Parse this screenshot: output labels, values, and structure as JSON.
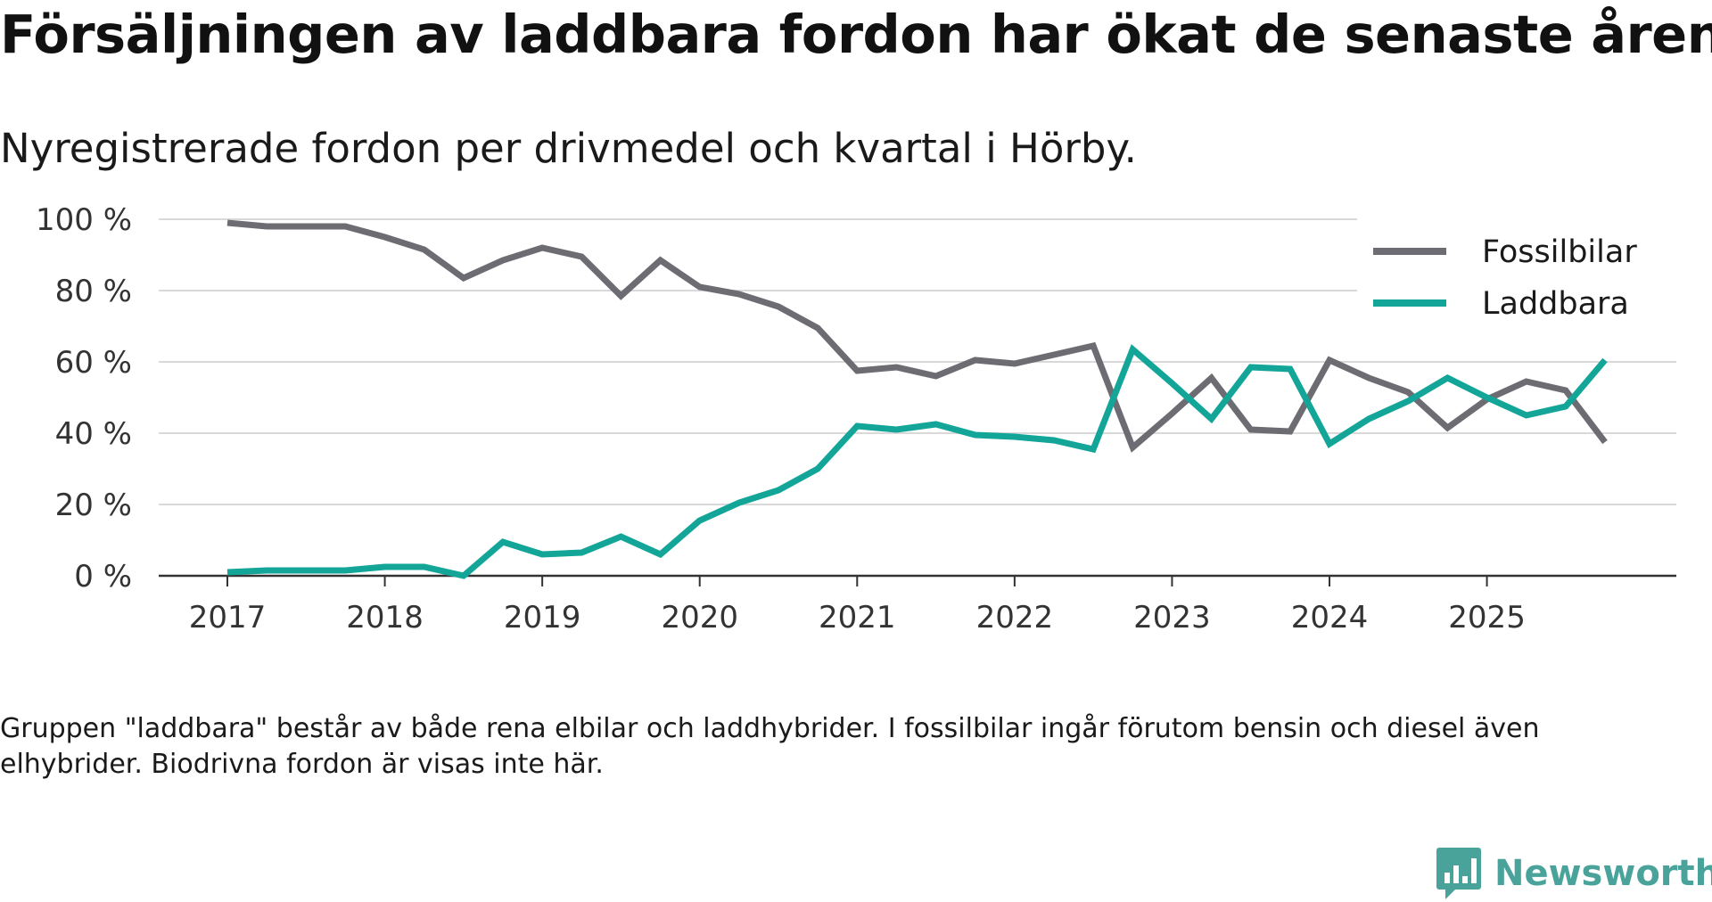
{
  "header": {
    "title": "Försäljningen av laddbara fordon har ökat de senaste åren",
    "subtitle": "Nyregistrerade fordon per drivmedel och kvartal i Hörby."
  },
  "footnote": "Gruppen \"laddbara\" består av både rena elbilar och laddhybrider. I fossilbilar ingår förutom bensin och diesel även elhybrider. Biodrivna fordon är visas inte här.",
  "brand": {
    "name": "Newsworthy",
    "color": "#4aa39b",
    "icon": "newsworthy-logo-icon"
  },
  "chart_data": {
    "type": "line",
    "title": "Försäljningen av laddbara fordon har ökat de senaste åren",
    "subtitle": "Nyregistrerade fordon per drivmedel och kvartal i Hörby.",
    "xlabel": "",
    "ylabel": "",
    "x_unit": "year (quarterly points)",
    "xlim": [
      2017,
      2025.75
    ],
    "ylim": [
      0,
      100
    ],
    "grid": true,
    "legend_position": "top-right",
    "x_ticks": [
      2017,
      2018,
      2019,
      2020,
      2021,
      2022,
      2023,
      2024,
      2025
    ],
    "x_tick_labels": [
      "2017",
      "2018",
      "2019",
      "2020",
      "2021",
      "2022",
      "2023",
      "2024",
      "2025"
    ],
    "y_ticks": [
      0,
      20,
      40,
      60,
      80,
      100
    ],
    "y_tick_labels": [
      "0 %",
      "20 %",
      "40 %",
      "60 %",
      "80 %",
      "100 %"
    ],
    "x": [
      2017.0,
      2017.25,
      2017.5,
      2017.75,
      2018.0,
      2018.25,
      2018.5,
      2018.75,
      2019.0,
      2019.25,
      2019.5,
      2019.75,
      2020.0,
      2020.25,
      2020.5,
      2020.75,
      2021.0,
      2021.25,
      2021.5,
      2021.75,
      2022.0,
      2022.25,
      2022.5,
      2022.75,
      2023.0,
      2023.25,
      2023.5,
      2023.75,
      2024.0,
      2024.25,
      2024.5,
      2024.75,
      2025.0,
      2025.25,
      2025.5,
      2025.75
    ],
    "series": [
      {
        "name": "Fossilbilar",
        "color": "#6d6c73",
        "values": [
          99,
          98,
          98,
          98,
          95,
          91.5,
          83.5,
          88.5,
          92,
          89.5,
          78.5,
          88.5,
          81,
          79,
          75.5,
          69.5,
          57.5,
          58.5,
          56,
          60.5,
          59.5,
          62,
          64.5,
          36,
          45.5,
          55.5,
          41,
          40.5,
          60.5,
          55.5,
          51.5,
          41.5,
          49.5,
          54.5,
          52,
          37.5
        ]
      },
      {
        "name": "Laddbara",
        "color": "#12a598",
        "values": [
          1,
          1.5,
          1.5,
          1.5,
          2.5,
          2.5,
          0,
          9.5,
          6,
          6.5,
          11,
          6,
          15.5,
          20.5,
          24,
          30,
          42,
          41,
          42.5,
          39.5,
          39,
          38,
          35.5,
          63.5,
          54,
          44,
          58.5,
          58,
          37,
          44,
          49,
          55.5,
          50,
          45,
          47.5,
          60.5
        ]
      }
    ]
  }
}
